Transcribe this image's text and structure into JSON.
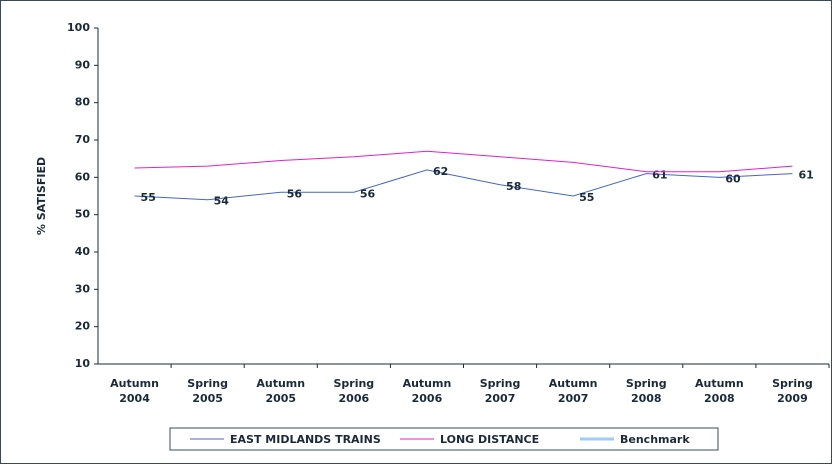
{
  "chart_data": {
    "type": "line",
    "y_label": "% SATISFIED",
    "categories": [
      "Autumn 2004",
      "Spring 2005",
      "Autumn 2005",
      "Spring 2006",
      "Autumn 2006",
      "Spring 2007",
      "Autumn 2007",
      "Spring 2008",
      "Autumn 2008",
      "Spring 2009"
    ],
    "series": [
      {
        "name": "EAST MIDLANDS TRAINS",
        "color": "#4466cc",
        "values": [
          55,
          54,
          56,
          56,
          62,
          58,
          55,
          61,
          60,
          61
        ],
        "data_labels": true
      },
      {
        "name": "LONG DISTANCE",
        "color": "#dd22cc",
        "values": [
          62.5,
          63,
          64.5,
          65.5,
          67,
          65.5,
          64,
          61.5,
          61.5,
          63
        ],
        "data_labels": false
      },
      {
        "name": "Benchmark",
        "color": "#99ccff",
        "values": [
          null,
          null,
          null,
          null,
          null,
          null,
          null,
          null,
          null,
          null
        ],
        "data_labels": false
      }
    ],
    "ylim": [
      10,
      100
    ],
    "yticks": [
      10,
      20,
      30,
      40,
      50,
      60,
      70,
      80,
      90,
      100
    ],
    "legend": "bottom"
  }
}
